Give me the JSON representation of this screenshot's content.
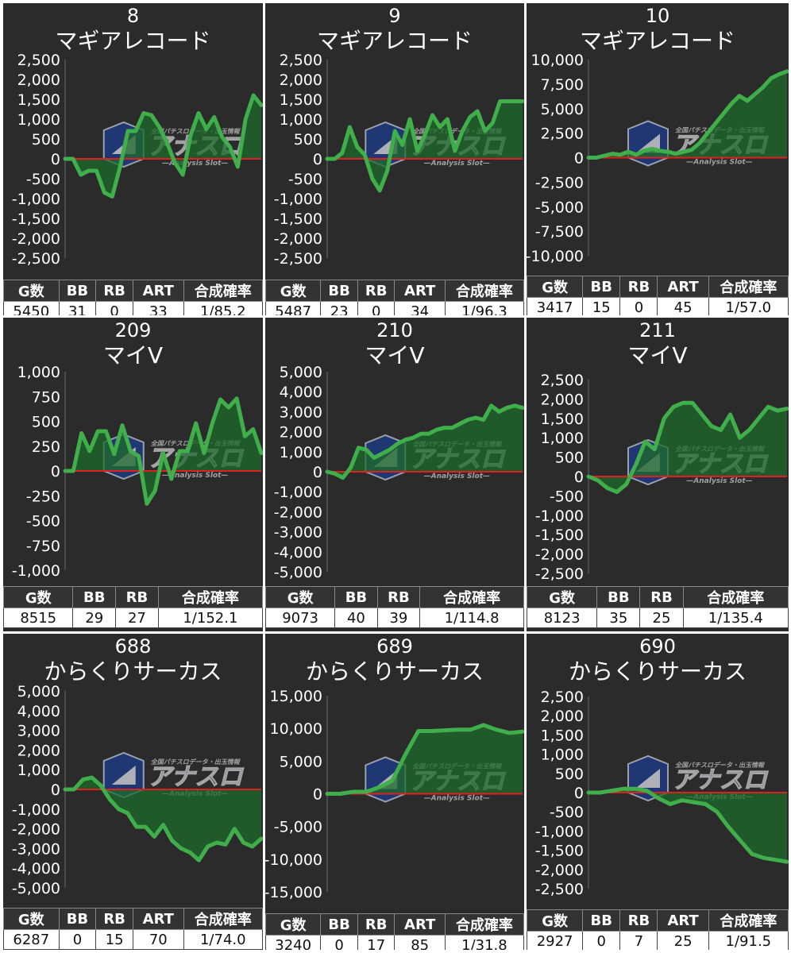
{
  "charts": [
    {
      "number": "8",
      "name": "マギアレコード",
      "yticks": [
        "2,500",
        "2,000",
        "1,500",
        "1,000",
        "500",
        "0",
        "-500",
        "-1,000",
        "-1,500",
        "-2,000",
        "-2,500"
      ],
      "ylim": [
        -2500,
        2500
      ],
      "values": [
        0,
        0,
        -400,
        -300,
        -300,
        -850,
        -950,
        -200,
        700,
        700,
        1150,
        1100,
        800,
        400,
        -100,
        -400,
        600,
        1150,
        750,
        1050,
        550,
        300,
        -200,
        1000,
        1600,
        1350
      ],
      "stats": {
        "headers": [
          "G数",
          "BB",
          "RB",
          "ART",
          "合成確率"
        ],
        "values": [
          "5450",
          "31",
          "0",
          "33",
          "1/85.2"
        ]
      }
    },
    {
      "number": "9",
      "name": "マギアレコード",
      "yticks": [
        "2,500",
        "2,000",
        "1,500",
        "1,000",
        "500",
        "0",
        "-500",
        "-1,000",
        "-1,500",
        "-2,000",
        "-2,500"
      ],
      "ylim": [
        -2500,
        2500
      ],
      "values": [
        0,
        0,
        150,
        800,
        300,
        100,
        -500,
        -800,
        -300,
        700,
        350,
        1000,
        200,
        600,
        1100,
        800,
        1000,
        200,
        700,
        1050,
        1200,
        700,
        900,
        1450,
        1450,
        1450,
        1450
      ],
      "stats": {
        "headers": [
          "G数",
          "BB",
          "RB",
          "ART",
          "合成確率"
        ],
        "values": [
          "5487",
          "23",
          "0",
          "34",
          "1/96.3"
        ]
      }
    },
    {
      "number": "10",
      "name": "マギアレコード",
      "yticks": [
        "10,000",
        "7,500",
        "5,000",
        "2,500",
        "0",
        "-2,500",
        "-5,000",
        "-7,500",
        "-10,000"
      ],
      "ylim": [
        -10000,
        10000
      ],
      "values": [
        0,
        0,
        200,
        400,
        300,
        600,
        300,
        700,
        900,
        700,
        600,
        400,
        600,
        800,
        1500,
        2500,
        3500,
        4500,
        5500,
        6300,
        5800,
        6500,
        7200,
        8100,
        8500,
        8800
      ],
      "stats": {
        "headers": [
          "G数",
          "BB",
          "RB",
          "ART",
          "合成確率"
        ],
        "values": [
          "3417",
          "15",
          "0",
          "45",
          "1/57.0"
        ]
      }
    },
    {
      "number": "209",
      "name": "マイV",
      "yticks": [
        "1,000",
        "750",
        "500",
        "250",
        "0",
        "-250",
        "-500",
        "-750",
        "-1,000"
      ],
      "ylim": [
        -1000,
        1000
      ],
      "values": [
        0,
        0,
        380,
        200,
        400,
        400,
        170,
        460,
        200,
        150,
        -330,
        -200,
        180,
        -80,
        200,
        200,
        480,
        180,
        480,
        720,
        640,
        730,
        350,
        420,
        180
      ],
      "stats": {
        "headers": [
          "G数",
          "BB",
          "RB",
          "合成確率"
        ],
        "values": [
          "8515",
          "29",
          "27",
          "1/152.1"
        ]
      }
    },
    {
      "number": "210",
      "name": "マイV",
      "yticks": [
        "5,000",
        "4,000",
        "3,000",
        "2,000",
        "1,000",
        "0",
        "-1,000",
        "-2,000",
        "-3,000",
        "-4,000",
        "-5,000"
      ],
      "ylim": [
        -5000,
        5000
      ],
      "values": [
        0,
        -100,
        -300,
        200,
        1200,
        1100,
        700,
        900,
        1100,
        1400,
        1600,
        1700,
        1900,
        1900,
        2100,
        2200,
        2200,
        2400,
        2600,
        2700,
        2600,
        3300,
        3000,
        3200,
        3300,
        3200
      ],
      "stats": {
        "headers": [
          "G数",
          "BB",
          "RB",
          "合成確率"
        ],
        "values": [
          "9073",
          "40",
          "39",
          "1/114.8"
        ]
      }
    },
    {
      "number": "211",
      "name": "マイV",
      "yticks": [
        "2,500",
        "2,000",
        "1,500",
        "1,000",
        "500",
        "0",
        "-500",
        "-1,000",
        "-1,500",
        "-2,000",
        "-2,500"
      ],
      "ylim": [
        -2500,
        2500
      ],
      "values": [
        0,
        -100,
        -300,
        -400,
        -200,
        300,
        900,
        700,
        1500,
        1800,
        1900,
        1900,
        1600,
        1300,
        1200,
        1600,
        1000,
        1200,
        1500,
        1800,
        1700,
        1750
      ],
      "stats": {
        "headers": [
          "G数",
          "BB",
          "RB",
          "合成確率"
        ],
        "values": [
          "8123",
          "35",
          "25",
          "1/135.4"
        ]
      }
    },
    {
      "number": "688",
      "name": "からくりサーカス",
      "yticks": [
        "5,000",
        "4,000",
        "3,000",
        "2,000",
        "1,000",
        "0",
        "-1,000",
        "-2,000",
        "-3,000",
        "-4,000",
        "-5,000"
      ],
      "ylim": [
        -5000,
        5000
      ],
      "values": [
        0,
        0,
        500,
        600,
        200,
        -500,
        -1000,
        -1200,
        -1900,
        -1900,
        -2400,
        -1800,
        -2600,
        -3000,
        -3200,
        -3600,
        -2900,
        -2700,
        -2800,
        -2000,
        -2700,
        -2900,
        -2500
      ],
      "stats": {
        "headers": [
          "G数",
          "BB",
          "RB",
          "ART",
          "合成確率"
        ],
        "values": [
          "6287",
          "0",
          "15",
          "70",
          "1/74.0"
        ]
      }
    },
    {
      "number": "689",
      "name": "からくりサーカス",
      "yticks": [
        "15,000",
        "10,000",
        "5,000",
        "0",
        "-5,000",
        "-10,000",
        "-15,000"
      ],
      "ylim": [
        -15000,
        15000
      ],
      "values": [
        0,
        0,
        300,
        300,
        1000,
        2000,
        6000,
        9600,
        9600,
        9700,
        9800,
        9800,
        10500,
        9800,
        9300,
        9500
      ],
      "stats": {
        "headers": [
          "G数",
          "BB",
          "RB",
          "ART",
          "合成確率"
        ],
        "values": [
          "3240",
          "0",
          "17",
          "85",
          "1/31.8"
        ]
      }
    },
    {
      "number": "690",
      "name": "からくりサーカス",
      "yticks": [
        "2,500",
        "2,000",
        "1,500",
        "1,000",
        "500",
        "0",
        "-500",
        "-1,000",
        "-1,500",
        "-2,000",
        "-2,500"
      ],
      "ylim": [
        -2500,
        2500
      ],
      "values": [
        0,
        0,
        50,
        100,
        100,
        50,
        -150,
        -300,
        -200,
        -250,
        -300,
        -500,
        -900,
        -1250,
        -1600,
        -1700,
        -1750,
        -1800
      ],
      "stats": {
        "headers": [
          "G数",
          "BB",
          "RB",
          "ART",
          "合成確率"
        ],
        "values": [
          "2927",
          "0",
          "7",
          "25",
          "1/91.5"
        ]
      }
    }
  ],
  "watermark": {
    "main": "アナスロ",
    "sub": "—Analysis Slot—",
    "top": "全国パチスロデータ・出玉情報"
  },
  "colors": {
    "background": "#2b2b2b",
    "line": "#3fae4b",
    "fill": "#1f6b2b",
    "zero_line": "#e02020",
    "text": "#ffffff"
  }
}
